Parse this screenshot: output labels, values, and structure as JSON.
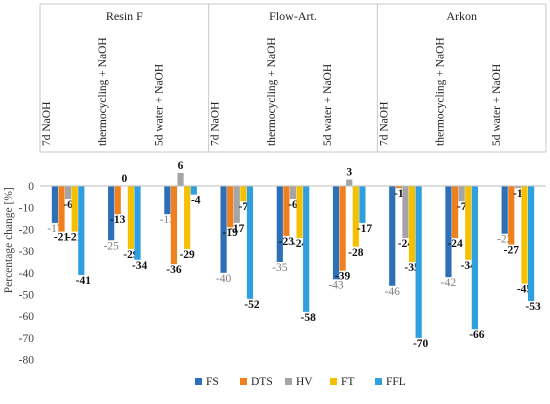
{
  "chart_data": {
    "type": "bar",
    "title": "",
    "xlabel": "",
    "ylabel": "Percentage change [%]",
    "ylim": [
      -80,
      10
    ],
    "yticks": [
      0,
      -10,
      -20,
      -30,
      -40,
      -50,
      -60,
      -70,
      -80
    ],
    "legend_position": "bottom",
    "groups": [
      {
        "name": "Resin F",
        "categories": [
          {
            "name": "7d NaOH",
            "values": {
              "FS": -17,
              "DTS": -21,
              "HV": -6,
              "FT": -21,
              "FFL": -41
            }
          },
          {
            "name": "thermocycling + NaOH",
            "values": {
              "FS": -25,
              "DTS": -13,
              "HV": 0,
              "FT": -29,
              "FFL": -34
            }
          },
          {
            "name": "5d water + NaOH",
            "values": {
              "FS": -13,
              "DTS": -36,
              "HV": 6,
              "FT": -29,
              "FFL": -4
            }
          }
        ]
      },
      {
        "name": "Flow-Art.",
        "categories": [
          {
            "name": "7d NaOH",
            "values": {
              "FS": -40,
              "DTS": -19,
              "HV": -17,
              "FT": -7,
              "FFL": -52
            }
          },
          {
            "name": "thermocycling + NaOH",
            "values": {
              "FS": -35,
              "DTS": -23,
              "HV": -6,
              "FT": -24,
              "FFL": -58
            }
          },
          {
            "name": "5d water + NaOH",
            "values": {
              "FS": -43,
              "DTS": -39,
              "HV": 3,
              "FT": -28,
              "FFL": -17
            }
          }
        ]
      },
      {
        "name": "Arkon",
        "categories": [
          {
            "name": "7d NaOH",
            "values": {
              "FS": -46,
              "DTS": -1,
              "HV": -24,
              "FT": -35,
              "FFL": -70
            }
          },
          {
            "name": "thermocycling + NaOH",
            "values": {
              "FS": -42,
              "DTS": -24,
              "HV": -7,
              "FT": -34,
              "FFL": -66
            }
          },
          {
            "name": "5d water + NaOH",
            "values": {
              "FS": -22,
              "DTS": -27,
              "HV": -1,
              "FT": -45,
              "FFL": -53
            }
          }
        ]
      }
    ],
    "series": [
      {
        "name": "FS",
        "color": "#2e6fb8"
      },
      {
        "name": "DTS",
        "color": "#f07f1d"
      },
      {
        "name": "HV",
        "color": "#a5a5a5"
      },
      {
        "name": "FT",
        "color": "#f5c000"
      },
      {
        "name": "FFL",
        "color": "#2f9fdf"
      }
    ],
    "data_labels": {
      "Resin F|7d NaOH|FS": "-17",
      "Resin F|7d NaOH|DTS": "-21",
      "Resin F|7d NaOH|HV": "-6",
      "Resin F|7d NaOH|FT": "-21",
      "Resin F|7d NaOH|FFL": "-41",
      "Resin F|thermocycling + NaOH|FS": "-25",
      "Resin F|thermocycling + NaOH|DTS": "-13",
      "Resin F|thermocycling + NaOH|HV": "0",
      "Resin F|thermocycling + NaOH|FT": "-29",
      "Resin F|thermocycling + NaOH|FFL": "-34",
      "Resin F|5d water + NaOH|FS": "-13",
      "Resin F|5d water + NaOH|DTS": "-36",
      "Resin F|5d water + NaOH|HV": "6",
      "Resin F|5d water + NaOH|FT": "-29",
      "Resin F|5d water + NaOH|FFL": "-4",
      "Flow-Art.|7d NaOH|FS": "-40",
      "Flow-Art.|7d NaOH|DTS": "-19",
      "Flow-Art.|7d NaOH|HV": "-17",
      "Flow-Art.|7d NaOH|FT": "-7",
      "Flow-Art.|7d NaOH|FFL": "-52",
      "Flow-Art.|thermocycling + NaOH|FS": "-35",
      "Flow-Art.|thermocycling + NaOH|DTS": "-23",
      "Flow-Art.|thermocycling + NaOH|HV": "-6",
      "Flow-Art.|thermocycling + NaOH|FT": "-24",
      "Flow-Art.|thermocycling + NaOH|FFL": "-58",
      "Flow-Art.|5d water + NaOH|FS": "-43",
      "Flow-Art.|5d water + NaOH|DTS": "-39",
      "Flow-Art.|5d water + NaOH|HV": "3",
      "Flow-Art.|5d water + NaOH|FT": "-28",
      "Flow-Art.|5d water + NaOH|FFL": "-17",
      "Arkon|7d NaOH|FS": "-46",
      "Arkon|7d NaOH|DTS": "-1",
      "Arkon|7d NaOH|HV": "-24",
      "Arkon|7d NaOH|FT": "-35",
      "Arkon|7d NaOH|FFL": "-70",
      "Arkon|thermocycling + NaOH|FS": "-42",
      "Arkon|thermocycling + NaOH|DTS": "-24",
      "Arkon|thermocycling + NaOH|HV": "-7",
      "Arkon|thermocycling + NaOH|FT": "-34",
      "Arkon|thermocycling + NaOH|FFL": "-66",
      "Arkon|5d water + NaOH|FS": "-22",
      "Arkon|5d water + NaOH|DTS": "-27",
      "Arkon|5d water + NaOH|HV": "-1",
      "Arkon|5d water + NaOH|FT": "-45",
      "Arkon|5d water + NaOH|FFL": "-53"
    },
    "grid": false
  }
}
